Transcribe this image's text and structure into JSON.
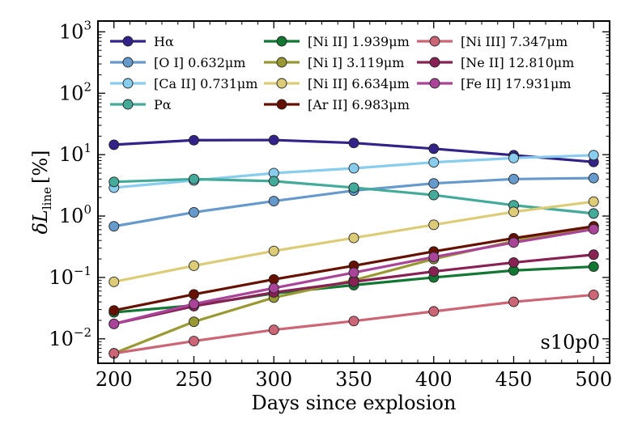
{
  "chart_data": {
    "type": "line",
    "yscale": "log",
    "title": "",
    "xlabel": "Days since explosion",
    "ylabel_main": "δL",
    "ylabel_sub": "line",
    "ylabel_unit": "[%]",
    "xlim": [
      190,
      510
    ],
    "ylim": [
      0.004,
      1500
    ],
    "xticks": [
      200,
      250,
      300,
      350,
      400,
      450,
      500
    ],
    "yticks": [
      {
        "value": 0.01,
        "base": "10",
        "exp": "−2"
      },
      {
        "value": 0.1,
        "base": "10",
        "exp": "−1"
      },
      {
        "value": 1,
        "base": "10",
        "exp": "0"
      },
      {
        "value": 10,
        "base": "10",
        "exp": "1"
      },
      {
        "value": 100,
        "base": "10",
        "exp": "2"
      },
      {
        "value": 1000,
        "base": "10",
        "exp": "3"
      }
    ],
    "annotation": "s10p0",
    "legend_position": "top",
    "x": [
      200,
      250,
      300,
      350,
      400,
      450,
      500
    ],
    "series": [
      {
        "name": "Hα",
        "color": "#332288",
        "values": [
          14.5,
          17.2,
          17.3,
          15.5,
          12.5,
          9.8,
          7.6
        ]
      },
      {
        "name": "[O I] 0.632μm",
        "color": "#6699CC",
        "values": [
          0.68,
          1.15,
          1.75,
          2.6,
          3.4,
          4.0,
          4.15
        ]
      },
      {
        "name": "[Ca II] 0.731μm",
        "color": "#88CCEE",
        "values": [
          2.9,
          3.8,
          5.0,
          6.0,
          7.5,
          8.8,
          9.8
        ]
      },
      {
        "name": "Pα",
        "color": "#44AA99",
        "values": [
          3.6,
          4.0,
          3.7,
          2.9,
          2.2,
          1.5,
          1.1
        ]
      },
      {
        "name": "[Ni II] 1.939μm",
        "color": "#117733",
        "values": [
          0.027,
          0.035,
          0.055,
          0.075,
          0.1,
          0.13,
          0.15
        ]
      },
      {
        "name": "[Ni I] 3.119μm",
        "color": "#999933",
        "values": [
          0.0058,
          0.019,
          0.047,
          0.09,
          0.2,
          0.39,
          0.67
        ]
      },
      {
        "name": "[Ni II] 6.634μm",
        "color": "#DDCC77",
        "values": [
          0.085,
          0.155,
          0.27,
          0.44,
          0.72,
          1.17,
          1.72
        ]
      },
      {
        "name": "[Ar II] 6.983μm",
        "color": "#661100",
        "values": [
          0.029,
          0.053,
          0.093,
          0.155,
          0.265,
          0.435,
          0.68
        ]
      },
      {
        "name": "[Ni III] 7.347μm",
        "color": "#CC6677",
        "values": [
          0.0058,
          0.0092,
          0.014,
          0.0195,
          0.028,
          0.04,
          0.052
        ]
      },
      {
        "name": "[Ne II] 12.810μm",
        "color": "#882255",
        "values": [
          0.0175,
          0.034,
          0.057,
          0.085,
          0.125,
          0.175,
          0.235
        ]
      },
      {
        "name": "[Fe II] 17.931μm",
        "color": "#AA4499",
        "values": [
          0.0175,
          0.037,
          0.067,
          0.12,
          0.215,
          0.37,
          0.61
        ]
      }
    ]
  }
}
